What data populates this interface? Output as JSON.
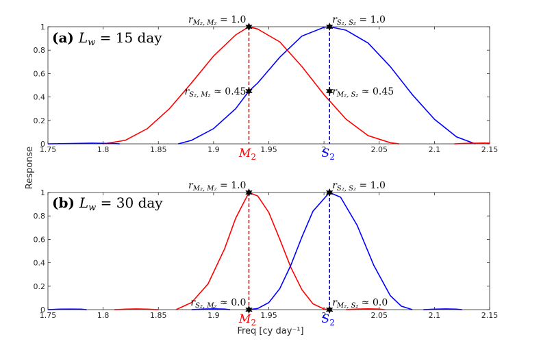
{
  "ylabel": "Response",
  "xlabel": "Freq [cy day⁻¹]",
  "chart_data": [
    {
      "type": "line",
      "panel_label_prefix": "(a)",
      "panel_label_eq": "L",
      "panel_label_sub": "w",
      "panel_label_rest": " = 15 day",
      "xlim": [
        1.75,
        2.15
      ],
      "ylim": [
        0,
        1
      ],
      "xticks": [
        "1.75",
        "1.8",
        "1.85",
        "1.9",
        "1.95",
        "2",
        "2.05",
        "2.1",
        "2.15"
      ],
      "yticks": [
        "0",
        "0.2",
        "0.4",
        "0.6",
        "0.8",
        "1"
      ],
      "grid": false,
      "series": [
        {
          "color": "#ff0000",
          "x": [
            1.8,
            1.82,
            1.84,
            1.86,
            1.88,
            1.9,
            1.92,
            1.932,
            1.94,
            1.96,
            1.98,
            2.0,
            2.02,
            2.04,
            2.06,
            2.068
          ],
          "y": [
            0.0,
            0.03,
            0.13,
            0.3,
            0.52,
            0.75,
            0.93,
            1.0,
            0.98,
            0.87,
            0.66,
            0.42,
            0.21,
            0.07,
            0.01,
            0.0
          ]
        },
        {
          "color": "#0000ff",
          "x": [
            1.868,
            1.88,
            1.9,
            1.92,
            1.932,
            1.94,
            1.96,
            1.98,
            2.0,
            2.005,
            2.02,
            2.04,
            2.06,
            2.08,
            2.1,
            2.12,
            2.137
          ],
          "y": [
            0.0,
            0.03,
            0.13,
            0.3,
            0.45,
            0.52,
            0.74,
            0.92,
            0.995,
            1.0,
            0.97,
            0.86,
            0.66,
            0.42,
            0.21,
            0.06,
            0.0
          ]
        },
        {
          "color": "#0000ff",
          "x": [
            1.75,
            1.77,
            1.79,
            1.81,
            1.815
          ],
          "y": [
            0.0,
            0.003,
            0.006,
            0.003,
            0.0
          ]
        },
        {
          "color": "#ff0000",
          "x": [
            2.118,
            2.13,
            2.145,
            2.15
          ],
          "y": [
            0.0,
            0.005,
            0.007,
            0.006
          ]
        }
      ],
      "vlines": [
        {
          "x": 1.932,
          "color": "#ff0000",
          "label_main": "M",
          "label_sub": "2"
        },
        {
          "x": 2.005,
          "color": "#0000ff",
          "label_main": "S",
          "label_sub": "2"
        }
      ],
      "markers": [
        {
          "x": 1.932,
          "y": 1.0
        },
        {
          "x": 2.005,
          "y": 1.0
        },
        {
          "x": 1.932,
          "y": 0.45
        },
        {
          "x": 2.005,
          "y": 0.45
        }
      ],
      "annotations": [
        {
          "ax": 1.932,
          "ay": 1.0,
          "anchor": "end-top",
          "sub": "M₂, M₂",
          "rest": " = 1.0"
        },
        {
          "ax": 2.005,
          "ay": 1.0,
          "anchor": "start-top",
          "sub": "S₂, S₂",
          "rest": " = 1.0"
        },
        {
          "ax": 1.932,
          "ay": 0.45,
          "anchor": "end-mid",
          "sub": "S₂, M₂",
          "rest": " ≈ 0.45"
        },
        {
          "ax": 2.005,
          "ay": 0.45,
          "anchor": "start-mid",
          "sub": "M₂, S₂",
          "rest": " ≈ 0.45"
        }
      ]
    },
    {
      "type": "line",
      "panel_label_prefix": "(b)",
      "panel_label_eq": "L",
      "panel_label_sub": "w",
      "panel_label_rest": " = 30 day",
      "xlim": [
        1.75,
        2.15
      ],
      "ylim": [
        0,
        1
      ],
      "xticks": [
        "1.75",
        "1.8",
        "1.85",
        "1.9",
        "1.95",
        "2",
        "2.05",
        "2.1",
        "2.15"
      ],
      "yticks": [
        "0",
        "0.2",
        "0.4",
        "0.6",
        "0.8",
        "1"
      ],
      "grid": false,
      "series": [
        {
          "color": "#ff0000",
          "x": [
            1.866,
            1.88,
            1.895,
            1.91,
            1.92,
            1.932,
            1.94,
            1.95,
            1.96,
            1.97,
            1.98,
            1.99,
            2.0,
            2.005
          ],
          "y": [
            0.0,
            0.06,
            0.22,
            0.52,
            0.78,
            1.0,
            0.97,
            0.83,
            0.6,
            0.36,
            0.17,
            0.05,
            0.005,
            0.0
          ]
        },
        {
          "color": "#0000ff",
          "x": [
            1.932,
            1.94,
            1.95,
            1.96,
            1.97,
            1.98,
            1.99,
            2.005,
            2.015,
            2.03,
            2.045,
            2.06,
            2.07,
            2.08
          ],
          "y": [
            0.0,
            0.01,
            0.06,
            0.18,
            0.38,
            0.62,
            0.84,
            1.0,
            0.96,
            0.72,
            0.38,
            0.12,
            0.03,
            0.0
          ]
        },
        {
          "color": "#0000ff",
          "x": [
            1.75,
            1.76,
            1.77,
            1.78,
            1.785
          ],
          "y": [
            0.0,
            0.004,
            0.005,
            0.004,
            0.0
          ]
        },
        {
          "color": "#ff0000",
          "x": [
            1.81,
            1.82,
            1.83,
            1.84,
            1.85
          ],
          "y": [
            0.0,
            0.004,
            0.006,
            0.004,
            0.0
          ]
        },
        {
          "color": "#0000ff",
          "x": [
            1.88,
            1.89,
            1.9,
            1.91,
            1.915
          ],
          "y": [
            0.0,
            0.005,
            0.007,
            0.005,
            0.0
          ]
        },
        {
          "color": "#ff0000",
          "x": [
            2.02,
            2.03,
            2.04,
            2.05,
            2.055
          ],
          "y": [
            0.0,
            0.005,
            0.007,
            0.005,
            0.0
          ]
        },
        {
          "color": "#0000ff",
          "x": [
            2.09,
            2.1,
            2.11,
            2.12,
            2.125
          ],
          "y": [
            0.0,
            0.004,
            0.006,
            0.004,
            0.0
          ]
        }
      ],
      "vlines": [
        {
          "x": 1.932,
          "color": "#ff0000",
          "label_main": "M",
          "label_sub": "2"
        },
        {
          "x": 2.005,
          "color": "#0000ff",
          "label_main": "S",
          "label_sub": "2"
        }
      ],
      "markers": [
        {
          "x": 1.932,
          "y": 1.0
        },
        {
          "x": 2.005,
          "y": 1.0
        },
        {
          "x": 1.932,
          "y": 0.0
        },
        {
          "x": 2.005,
          "y": 0.0
        }
      ],
      "annotations": [
        {
          "ax": 1.932,
          "ay": 1.0,
          "anchor": "end-top",
          "sub": "M₂, M₂",
          "rest": " = 1.0"
        },
        {
          "ax": 2.005,
          "ay": 1.0,
          "anchor": "start-top",
          "sub": "S₂, S₂",
          "rest": " = 1.0"
        },
        {
          "ax": 1.932,
          "ay": 0.0,
          "anchor": "end-low",
          "sub": "S₂, M₂",
          "rest": " ≈ 0.0"
        },
        {
          "ax": 2.005,
          "ay": 0.0,
          "anchor": "start-low",
          "sub": "M₂, S₂",
          "rest": " ≈ 0.0"
        }
      ]
    }
  ]
}
